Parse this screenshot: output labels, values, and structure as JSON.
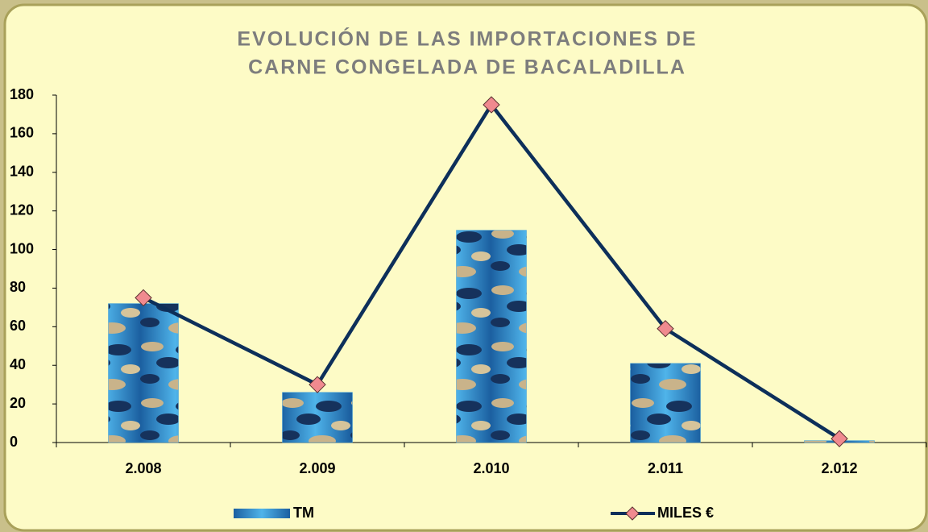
{
  "chart_data": {
    "type": "bar",
    "title": [
      "EVOLUCIÓN DE LAS IMPORTACIONES DE",
      "CARNE CONGELADA DE BACALADILLA"
    ],
    "categories": [
      "2.008",
      "2.009",
      "2.010",
      "2.011",
      "2.012"
    ],
    "series": [
      {
        "name": "TM",
        "type": "bar",
        "color": "#3a9ad9",
        "values": [
          72,
          26,
          110,
          41,
          1
        ]
      },
      {
        "name": "MILES €",
        "type": "line",
        "color": "#0d2f5a",
        "marker_color": "#f08a8f",
        "values": [
          75,
          30,
          175,
          59,
          2
        ]
      }
    ],
    "ylim": [
      0,
      180
    ],
    "yticks": [
      0,
      20,
      40,
      60,
      80,
      100,
      120,
      140,
      160,
      180
    ],
    "grid": false,
    "legend": "bottom"
  }
}
